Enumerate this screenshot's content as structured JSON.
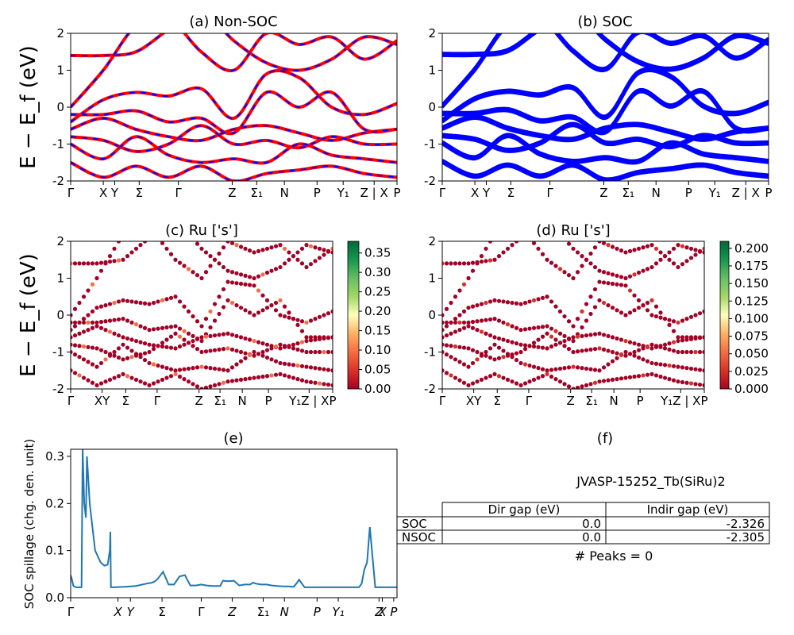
{
  "chart_data": [
    {
      "panel": "a",
      "type": "line",
      "title": "(a) Non-SOC",
      "ylabel": "E − E_f (eV)",
      "ylim": [
        -2,
        2
      ],
      "yticks": [
        -2,
        -1,
        0,
        1,
        2
      ],
      "xticks": [
        "Γ",
        "X",
        "Y",
        "Σ",
        "Γ",
        "Z",
        "Σ₁",
        "N",
        "P",
        "Y₁",
        "Z | X",
        "P"
      ],
      "series_colors": {
        "bands": "#ff0000",
        "dashed_overlay": "#0000ff"
      },
      "series": [
        {
          "name": "",
          "x": [
            0,
            0.5,
            1,
            1.5,
            2,
            2.5,
            3,
            3.5,
            4,
            4.5,
            5
          ],
          "values": [
            -1.9,
            -0.8,
            0.3,
            1.5,
            1.9,
            1.2,
            0.6,
            -0.4,
            -1.0,
            -1.9,
            -2.0
          ]
        }
      ]
    },
    {
      "panel": "b",
      "type": "line",
      "title": "(b) SOC",
      "ylim": [
        -2,
        2
      ],
      "yticks": [
        -2,
        -1,
        0,
        1,
        2
      ],
      "xticks": [
        "Γ",
        "X",
        "Y",
        "Σ",
        "Γ",
        "Z",
        "Σ₁",
        "N",
        "P",
        "Y₁",
        "Z | X",
        "P"
      ],
      "series_colors": {
        "bands": "#0000ff"
      }
    },
    {
      "panel": "c",
      "type": "scatter",
      "title": "(c)  Ru ['s']",
      "ylabel": "E − E_f (eV)",
      "ylim": [
        -2,
        2
      ],
      "yticks": [
        -2,
        -1,
        0,
        1,
        2
      ],
      "xticks": [
        "Γ",
        "XY",
        "Σ",
        "Γ",
        "Z",
        "Σ₁",
        "N",
        "P",
        "Y₁Z | X",
        "P"
      ],
      "colorbar": {
        "min": 0.0,
        "max": 0.38,
        "ticks": [
          "0.00",
          "0.05",
          "0.10",
          "0.15",
          "0.20",
          "0.25",
          "0.30",
          "0.35"
        ],
        "colormap": "RdYlGn"
      }
    },
    {
      "panel": "d",
      "type": "scatter",
      "title": "(d) Ru ['s']",
      "ylim": [
        -2,
        2
      ],
      "yticks": [
        -2,
        -1,
        0,
        1,
        2
      ],
      "xticks": [
        "Γ",
        "XY",
        "Σ",
        "Γ",
        "Z",
        "Σ₁",
        "N",
        "P",
        "Y₁Z | X",
        "P"
      ],
      "colorbar": {
        "min": 0.0,
        "max": 0.21,
        "ticks": [
          "0.000",
          "0.025",
          "0.050",
          "0.075",
          "0.100",
          "0.125",
          "0.150",
          "0.175",
          "0.200"
        ],
        "colormap": "RdYlGn"
      }
    },
    {
      "panel": "e",
      "type": "line",
      "title": "(e)",
      "ylabel": "SOC spillage (chg. den. unit)",
      "ylim": [
        0,
        0.315
      ],
      "yticks": [
        0.0,
        0.1,
        0.2,
        0.3
      ],
      "xticks": [
        "Γ",
        "X",
        "Y",
        "Σ",
        "Γ",
        "Z",
        "Σ₁",
        "N",
        "P",
        "Y₁",
        "Z",
        "X",
        "P"
      ],
      "series_colors": {
        "spillage": "#1f77b4"
      },
      "series": [
        {
          "name": "",
          "x": [
            0,
            0.02,
            0.05,
            0.1,
            0.15,
            0.2,
            0.22,
            0.25,
            0.28,
            0.3,
            0.35,
            0.45,
            0.55,
            0.62,
            0.68,
            0.72,
            0.73,
            0.74,
            0.8,
            1.0,
            1.2,
            1.4,
            1.5,
            1.55,
            1.6,
            1.7,
            1.8,
            1.9,
            2.0,
            2.1,
            2.2,
            2.3,
            2.4,
            2.5,
            2.6,
            2.7,
            2.75,
            2.8,
            2.9,
            3.0,
            3.1,
            3.2,
            3.3,
            3.35,
            3.4,
            3.5,
            3.6,
            3.7,
            3.8,
            3.9,
            4.0,
            4.1,
            4.15,
            4.2,
            4.3,
            4.4,
            4.5,
            4.6,
            4.7,
            4.8,
            4.9,
            5.0,
            5.1,
            5.2,
            5.3,
            5.35,
            5.4,
            5.45,
            5.5,
            5.6,
            5.7,
            5.8,
            5.9,
            5.95,
            6.0
          ],
          "values": [
            0.048,
            0.04,
            0.025,
            0.022,
            0.022,
            0.022,
            0.315,
            0.2,
            0.17,
            0.3,
            0.2,
            0.1,
            0.075,
            0.068,
            0.07,
            0.1,
            0.14,
            0.022,
            0.022,
            0.023,
            0.025,
            0.03,
            0.032,
            0.035,
            0.04,
            0.055,
            0.028,
            0.028,
            0.045,
            0.048,
            0.026,
            0.026,
            0.028,
            0.026,
            0.025,
            0.025,
            0.025,
            0.036,
            0.035,
            0.036,
            0.026,
            0.028,
            0.028,
            0.032,
            0.03,
            0.028,
            0.028,
            0.026,
            0.025,
            0.024,
            0.024,
            0.023,
            0.03,
            0.038,
            0.022,
            0.022,
            0.022,
            0.022,
            0.022,
            0.022,
            0.022,
            0.022,
            0.022,
            0.022,
            0.022,
            0.03,
            0.06,
            0.075,
            0.15,
            0.022,
            0.022,
            0.022,
            0.022,
            0.022,
            0.022
          ]
        }
      ]
    }
  ],
  "panel_f": {
    "title": "(f)",
    "material": "JVASP-15252_Tb(SiRu)2",
    "table": {
      "headers": [
        "",
        "Dir gap (eV)",
        "Indir gap (eV)"
      ],
      "rows": [
        {
          "label": "SOC",
          "dir": "0.0",
          "indir": "-2.326"
        },
        {
          "label": "NSOC",
          "dir": "0.0",
          "indir": "-2.305"
        }
      ]
    },
    "peaks": "# Peaks = 0"
  }
}
